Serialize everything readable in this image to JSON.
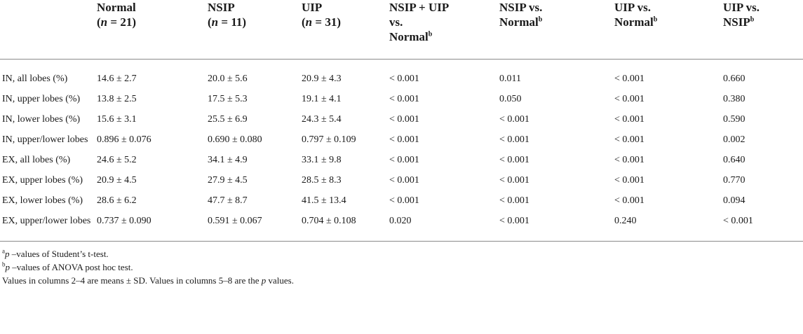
{
  "table": {
    "headers": [
      {
        "line1": "",
        "line2": ""
      },
      {
        "line1": "Normal",
        "n_label": "n",
        "n_value": "= 21"
      },
      {
        "line1": "NSIP",
        "n_label": "n",
        "n_value": "= 11"
      },
      {
        "line1": "UIP",
        "n_label": "n",
        "n_value": "= 31"
      },
      {
        "line1": "NSIP + UIP",
        "line2": "vs.",
        "line3": "Normal",
        "sup": "b"
      },
      {
        "line1": "NSIP vs.",
        "line2": "Normal",
        "sup": "b"
      },
      {
        "line1": "UIP vs.",
        "line2": "Normal",
        "sup": "b"
      },
      {
        "line1": "UIP vs.",
        "line2": "NSIP",
        "sup": "b"
      }
    ],
    "rows": [
      [
        "IN, all lobes (%)",
        "14.6 ± 2.7",
        "20.0 ± 5.6",
        "20.9 ± 4.3",
        "< 0.001",
        "0.011",
        "< 0.001",
        "0.660"
      ],
      [
        "IN, upper lobes (%)",
        "13.8 ± 2.5",
        "17.5 ± 5.3",
        "19.1 ± 4.1",
        "< 0.001",
        "0.050",
        "< 0.001",
        "0.380"
      ],
      [
        "IN, lower lobes (%)",
        "15.6 ± 3.1",
        "25.5 ± 6.9",
        "24.3 ± 5.4",
        "< 0.001",
        "< 0.001",
        "< 0.001",
        "0.590"
      ],
      [
        "IN, upper/lower lobes",
        "0.896 ± 0.076",
        "0.690 ± 0.080",
        "0.797 ± 0.109",
        "< 0.001",
        "< 0.001",
        "< 0.001",
        "0.002"
      ],
      [
        "EX, all lobes (%)",
        "24.6 ± 5.2",
        "34.1 ± 4.9",
        "33.1 ± 9.8",
        "< 0.001",
        "< 0.001",
        "< 0.001",
        "0.640"
      ],
      [
        "EX, upper lobes (%)",
        "20.9 ± 4.5",
        "27.9 ± 4.5",
        "28.5 ± 8.3",
        "< 0.001",
        "< 0.001",
        "< 0.001",
        "0.770"
      ],
      [
        "EX, lower lobes (%)",
        "28.6 ± 6.2",
        "47.7 ± 8.7",
        "41.5 ± 13.4",
        "< 0.001",
        "< 0.001",
        "< 0.001",
        "0.094"
      ],
      [
        "EX, upper/lower lobes",
        "0.737 ± 0.090",
        "0.591 ± 0.067",
        "0.704 ± 0.108",
        "0.020",
        "< 0.001",
        "0.240",
        "< 0.001"
      ]
    ]
  },
  "footnotes": {
    "a": {
      "sup": "a",
      "p": "p",
      "text": " –values of Student’s t-test."
    },
    "b": {
      "sup": "b",
      "p": "p",
      "text": " –values of ANOVA post hoc test."
    },
    "note": {
      "before": "Values in columns 2–4 are means ± SD. Values in columns 5–8 are the ",
      "p": "p",
      "after": " values."
    }
  }
}
